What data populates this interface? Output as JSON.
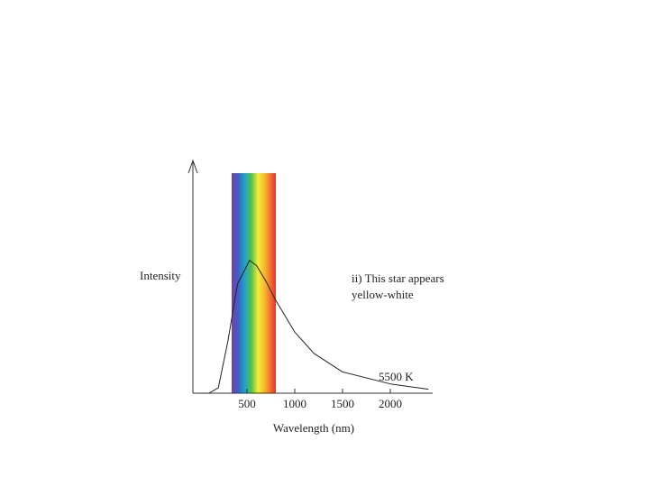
{
  "chart_data": {
    "type": "line",
    "x_label": "Wavelength (nm)",
    "y_label": "Intensity",
    "annotation": [
      "ii) This star appears",
      "yellow-white"
    ],
    "x": [
      0,
      100,
      200,
      300,
      400,
      527,
      600,
      700,
      800,
      1000,
      1200,
      1500,
      2000,
      2400
    ],
    "series": [
      {
        "name": "5500 K",
        "color": "#222222",
        "values": [
          0,
          0,
          0.04,
          0.39,
          0.82,
          1,
          0.96,
          0.84,
          0.7,
          0.46,
          0.3,
          0.16,
          0.07,
          0.03
        ]
      }
    ],
    "xlim": [
      0,
      2450
    ],
    "ylim": [
      0,
      1.75
    ],
    "xticks": [
      500,
      1000,
      1500,
      2000
    ]
  }
}
